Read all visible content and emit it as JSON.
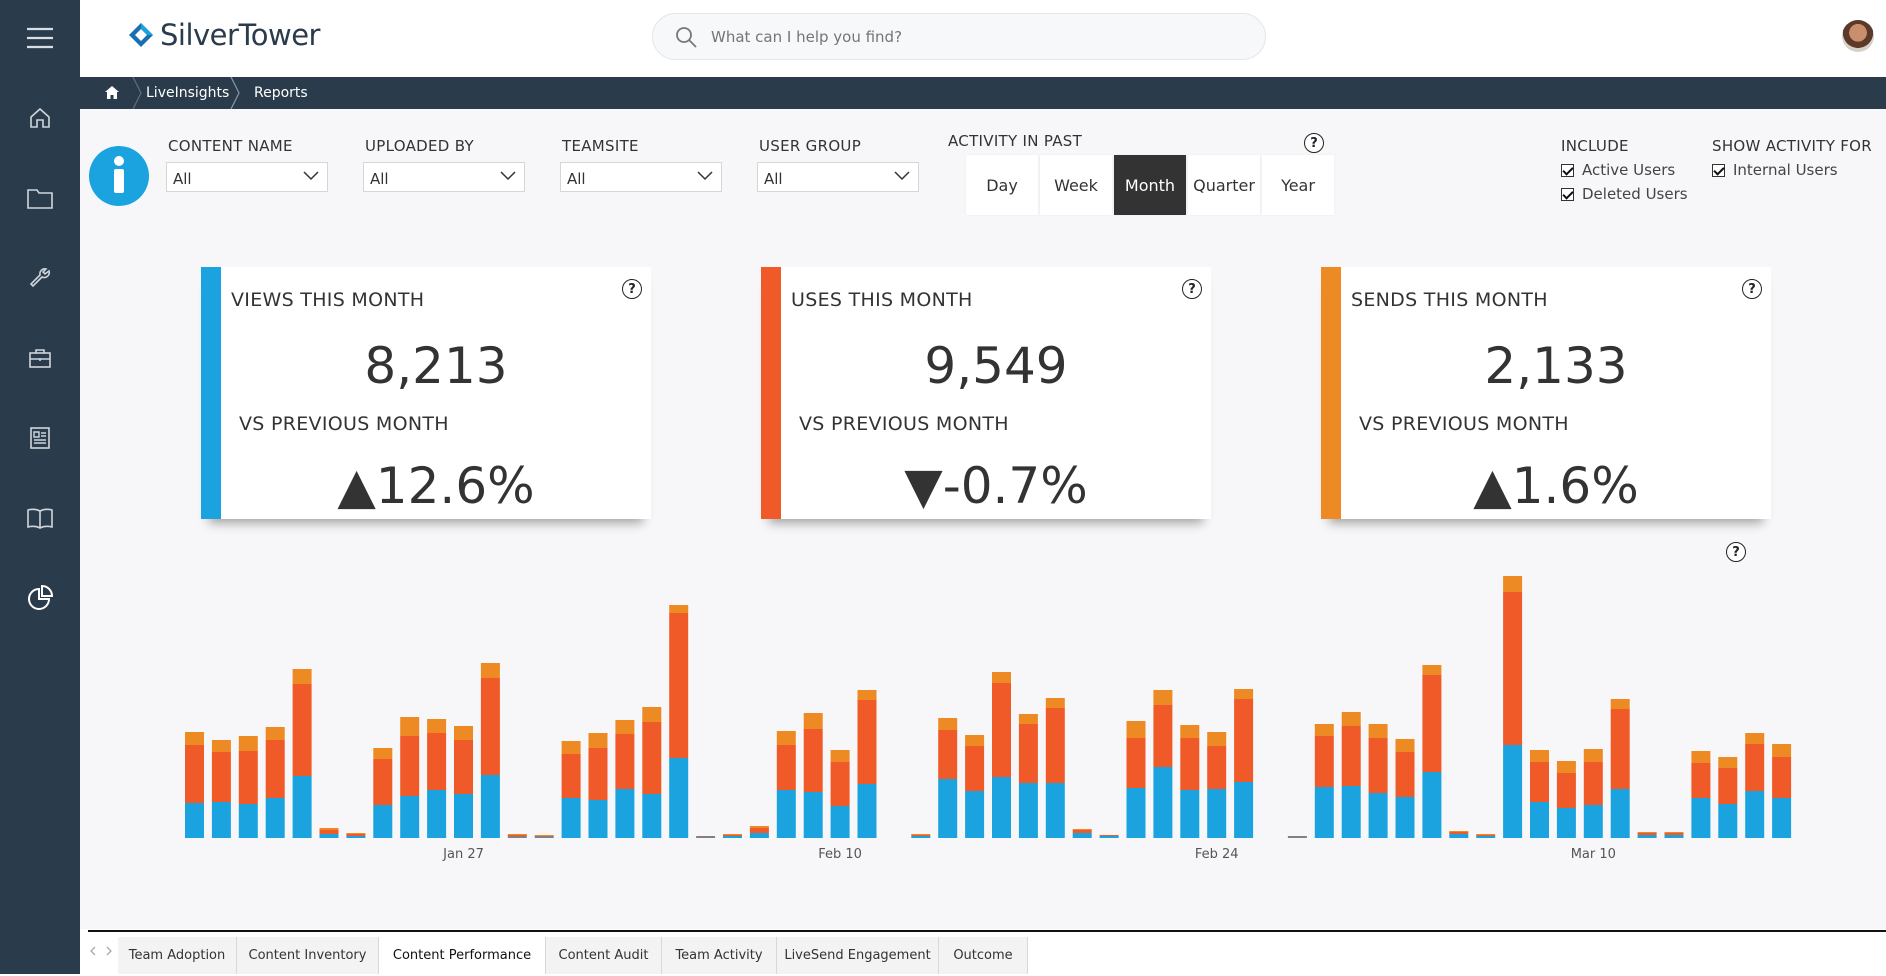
{
  "app": {
    "brand": "SilverTower",
    "accent": "#1ba3e0"
  },
  "search": {
    "placeholder": "What can I help you find?"
  },
  "sidebar": {
    "items": [
      "menu-icon",
      "home-icon",
      "folder-icon",
      "wrench-icon",
      "briefcase-icon",
      "newspaper-icon",
      "book-icon",
      "pie-chart-icon"
    ]
  },
  "breadcrumb": {
    "items": [
      "LiveInsights",
      "Reports"
    ]
  },
  "filters": {
    "content_name": {
      "label": "CONTENT NAME",
      "value": "All"
    },
    "uploaded_by": {
      "label": "UPLOADED BY",
      "value": "All"
    },
    "teamsite": {
      "label": "TEAMSITE",
      "value": "All"
    },
    "user_group": {
      "label": "USER GROUP",
      "value": "All"
    }
  },
  "activity": {
    "label": "ACTIVITY IN PAST",
    "options": [
      "Day",
      "Week",
      "Month",
      "Quarter",
      "Year"
    ],
    "selected": "Month"
  },
  "include": {
    "label": "INCLUDE",
    "options": [
      "Active Users",
      "Deleted Users"
    ]
  },
  "show_activity": {
    "label": "SHOW ACTIVITY FOR",
    "options": [
      "Internal Users"
    ]
  },
  "cards": [
    {
      "title": "VIEWS THIS MONTH",
      "value": "8,213",
      "subtitle": "VS PREVIOUS MONTH",
      "arrow": "▲",
      "change": "12.6%",
      "color": "#1ba3e0"
    },
    {
      "title": "USES THIS MONTH",
      "value": "9,549",
      "subtitle": "VS PREVIOUS MONTH",
      "arrow": "▼",
      "change": "-0.7%",
      "color": "#f05a28"
    },
    {
      "title": "SENDS THIS MONTH",
      "value": "2,133",
      "subtitle": "VS PREVIOUS MONTH",
      "arrow": "▲",
      "change": "1.6%",
      "color": "#ee8a24"
    }
  ],
  "chart_data": {
    "type": "bar",
    "stacked": true,
    "x_tick_labels": [
      "Jan 27",
      "Feb 10",
      "Feb 24",
      "Mar 10"
    ],
    "x_tick_index": [
      10,
      24,
      38,
      52
    ],
    "series": [
      {
        "name": "",
        "color": "#1ba3e0",
        "values": [
          35,
          36,
          34,
          40,
          62,
          4,
          2,
          33,
          42,
          48,
          44,
          63,
          1,
          1,
          40,
          38,
          49,
          44,
          80,
          1,
          2,
          5,
          48,
          46,
          32,
          54,
          0,
          2,
          59,
          47,
          61,
          55,
          55,
          5,
          2,
          50,
          71,
          48,
          49,
          56,
          0,
          1,
          51,
          52,
          45,
          41,
          66,
          4,
          2,
          93,
          36,
          30,
          33,
          49,
          3,
          3,
          40,
          34,
          47,
          40
        ],
        "ylim": [
          0,
          265
        ]
      },
      {
        "name": "",
        "color": "#f05a28",
        "values": [
          58,
          50,
          53,
          58,
          92,
          4,
          2,
          46,
          60,
          57,
          54,
          97,
          2,
          1,
          44,
          52,
          55,
          72,
          145,
          1,
          1,
          5,
          45,
          63,
          44,
          84,
          0,
          1,
          49,
          45,
          94,
          59,
          75,
          3,
          1,
          50,
          62,
          52,
          43,
          83,
          0,
          1,
          51,
          60,
          55,
          45,
          97,
          2,
          1,
          153,
          40,
          35,
          43,
          80,
          2,
          2,
          35,
          36,
          47,
          41
        ],
        "ylim": [
          0,
          265
        ]
      },
      {
        "name": "",
        "color": "#ee8a24",
        "values": [
          13,
          12,
          15,
          13,
          15,
          2,
          1,
          11,
          19,
          14,
          14,
          15,
          1,
          1,
          13,
          15,
          14,
          15,
          8,
          0,
          1,
          2,
          14,
          16,
          12,
          10,
          0,
          1,
          12,
          11,
          11,
          10,
          10,
          1,
          0,
          17,
          15,
          13,
          14,
          10,
          0,
          0,
          12,
          14,
          14,
          13,
          10,
          1,
          1,
          16,
          12,
          12,
          13,
          10,
          1,
          1,
          12,
          11,
          11,
          13
        ],
        "ylim": [
          0,
          265
        ]
      }
    ]
  },
  "tabs": {
    "items": [
      "Team Adoption",
      "Content Inventory",
      "Content Performance",
      "Content Audit",
      "Team Activity",
      "LiveSend Engagement",
      "Outcome"
    ],
    "active": "Content Performance"
  }
}
